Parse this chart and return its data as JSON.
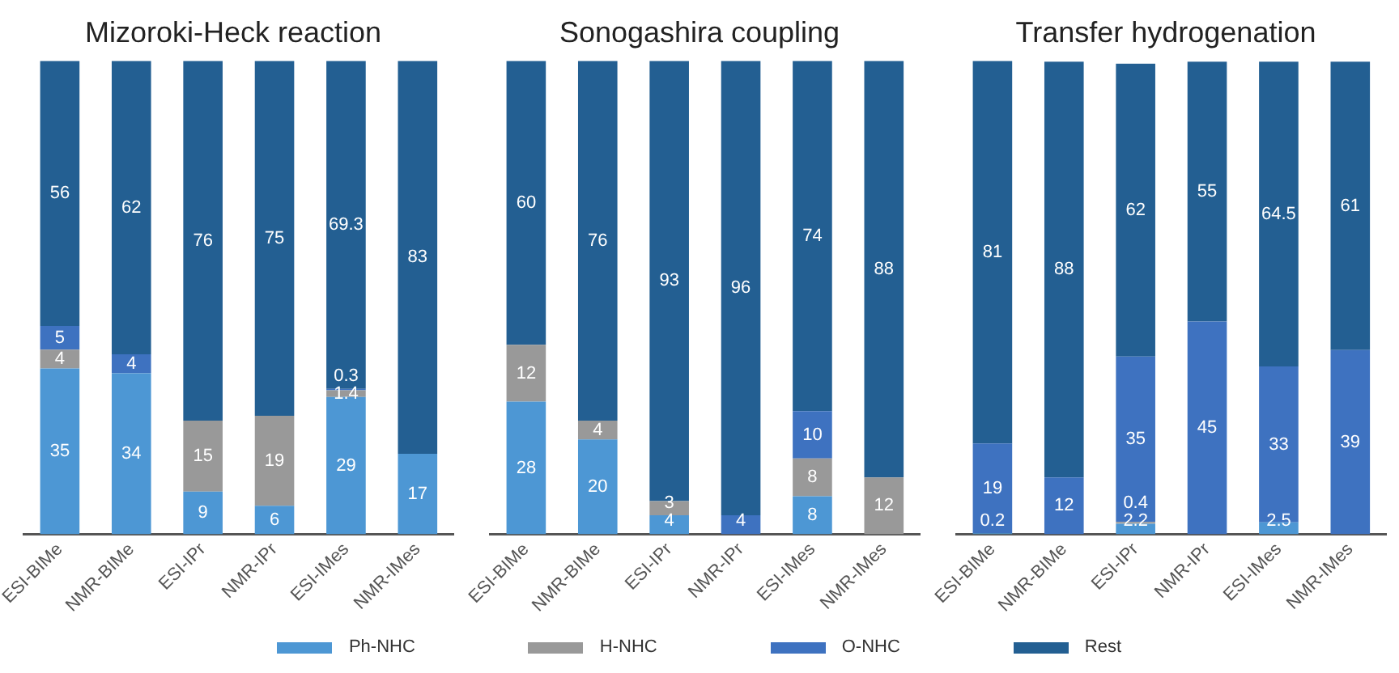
{
  "chart_data": [
    {
      "type": "bar",
      "title": "Mizoroki-Heck reaction",
      "stacked": true,
      "data_labels": true,
      "legend": "bottom",
      "categories": [
        "ESI-BIMe",
        "NMR-BIMe",
        "ESI-IPr",
        "NMR-IPr",
        "ESI-IMes",
        "NMR-IMes"
      ],
      "series": [
        {
          "name": "Ph-NHC",
          "color": "#4d97d4",
          "values": [
            35,
            34,
            9,
            6,
            29,
            17
          ]
        },
        {
          "name": "H-NHC",
          "color": "#999999",
          "values": [
            4,
            null,
            15,
            19,
            1.4,
            null
          ]
        },
        {
          "name": "O-NHC",
          "color": "#3e72c0",
          "values": [
            5,
            4,
            null,
            null,
            0.3,
            null
          ]
        },
        {
          "name": "Rest",
          "color": "#235f92",
          "values": [
            56,
            62,
            76,
            75,
            69.3,
            83
          ]
        }
      ]
    },
    {
      "type": "bar",
      "title": "Sonogashira coupling",
      "stacked": true,
      "data_labels": true,
      "legend": "bottom",
      "categories": [
        "ESI-BIMe",
        "NMR-BIMe",
        "ESI-IPr",
        "NMR-IPr",
        "ESI-IMes",
        "NMR-IMes"
      ],
      "series": [
        {
          "name": "Ph-NHC",
          "color": "#4d97d4",
          "values": [
            28,
            20,
            4,
            null,
            8,
            null
          ]
        },
        {
          "name": "H-NHC",
          "color": "#999999",
          "values": [
            12,
            4,
            3,
            null,
            8,
            12
          ]
        },
        {
          "name": "O-NHC",
          "color": "#3e72c0",
          "values": [
            null,
            null,
            null,
            4,
            10,
            null
          ]
        },
        {
          "name": "Rest",
          "color": "#235f92",
          "values": [
            60,
            76,
            93,
            96,
            74,
            88
          ]
        }
      ]
    },
    {
      "type": "bar",
      "title": "Transfer hydrogenation",
      "stacked": true,
      "data_labels": true,
      "legend": "bottom",
      "categories": [
        "ESI-BIMe",
        "NMR-BIMe",
        "ESI-IPr",
        "NMR-IPr",
        "ESI-IMes",
        "NMR-IMes"
      ],
      "series": [
        {
          "name": "Ph-NHC",
          "color": "#4d97d4",
          "values": [
            0.2,
            null,
            2.2,
            null,
            2.5,
            null
          ]
        },
        {
          "name": "H-NHC",
          "color": "#999999",
          "values": [
            null,
            null,
            0.4,
            null,
            null,
            null
          ]
        },
        {
          "name": "O-NHC",
          "color": "#3e72c0",
          "values": [
            19,
            12,
            35,
            45,
            33,
            39
          ]
        },
        {
          "name": "Rest",
          "color": "#235f92",
          "values": [
            81,
            88,
            62,
            55,
            64.5,
            61
          ]
        }
      ]
    }
  ]
}
